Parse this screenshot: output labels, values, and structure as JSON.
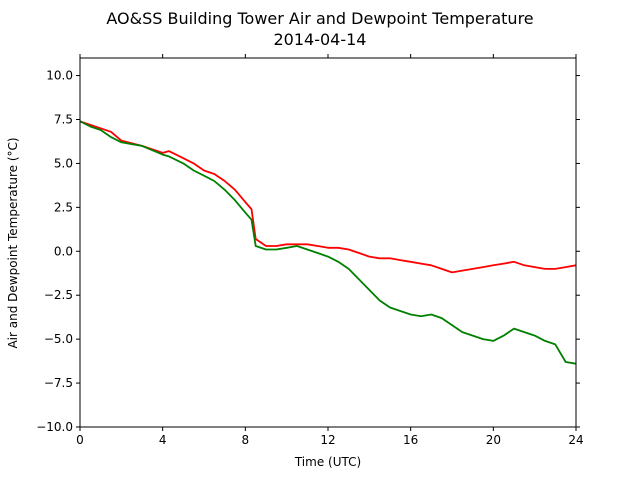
{
  "chart_data": {
    "type": "line",
    "title": "AO&SS Building Tower Air and Dewpoint Temperature",
    "subtitle": "2014-04-14",
    "xlabel": "Time (UTC)",
    "ylabel": "Air and Dewpoint Temperature (°C)",
    "xlim": [
      0,
      24
    ],
    "ylim": [
      -10,
      11
    ],
    "xticks": [
      0,
      4,
      8,
      12,
      16,
      20,
      24
    ],
    "yticks": [
      -10.0,
      -7.5,
      -5.0,
      -2.5,
      0.0,
      2.5,
      5.0,
      7.5,
      10.0
    ],
    "ytick_labels": [
      "−10.0",
      "−7.5",
      "−5.0",
      "−2.5",
      "0.0",
      "2.5",
      "5.0",
      "7.5",
      "10.0"
    ],
    "grid": false,
    "legend": "none",
    "series": [
      {
        "color": "#ff0000",
        "x": [
          0,
          0.5,
          1,
          1.5,
          2,
          3,
          4,
          4.3,
          5,
          5.5,
          6,
          6.5,
          7,
          7.5,
          8,
          8.3,
          8.5,
          9,
          9.5,
          10,
          10.5,
          11,
          11.5,
          12,
          12.5,
          13,
          13.5,
          14,
          14.5,
          15,
          15.5,
          16,
          16.5,
          17,
          17.5,
          18,
          18.5,
          19,
          19.5,
          20,
          20.5,
          21,
          21.5,
          22,
          22.5,
          23,
          23.5,
          24
        ],
        "y": [
          7.4,
          7.2,
          7.0,
          6.8,
          6.3,
          6.0,
          5.6,
          5.7,
          5.3,
          5.0,
          4.6,
          4.4,
          4.0,
          3.5,
          2.8,
          2.4,
          0.7,
          0.3,
          0.3,
          0.4,
          0.4,
          0.4,
          0.3,
          0.2,
          0.2,
          0.1,
          -0.1,
          -0.3,
          -0.4,
          -0.4,
          -0.5,
          -0.6,
          -0.7,
          -0.8,
          -1.0,
          -1.2,
          -1.1,
          -1.0,
          -0.9,
          -0.8,
          -0.7,
          -0.6,
          -0.8,
          -0.9,
          -1.0,
          -1.0,
          -0.9,
          -0.8
        ]
      },
      {
        "color": "#008000",
        "x": [
          0,
          0.5,
          1,
          1.5,
          2,
          3,
          4,
          4.3,
          5,
          5.5,
          6,
          6.5,
          7,
          7.5,
          8,
          8.3,
          8.5,
          9,
          9.5,
          10,
          10.5,
          11,
          11.5,
          12,
          12.5,
          13,
          13.5,
          14,
          14.5,
          15,
          15.5,
          16,
          16.5,
          17,
          17.5,
          18,
          18.5,
          19,
          19.5,
          20,
          20.5,
          21,
          21.5,
          22,
          22.5,
          23,
          23.5,
          24
        ],
        "y": [
          7.4,
          7.1,
          6.9,
          6.5,
          6.2,
          6.0,
          5.5,
          5.4,
          5.0,
          4.6,
          4.3,
          4.0,
          3.5,
          2.9,
          2.2,
          1.8,
          0.3,
          0.1,
          0.1,
          0.2,
          0.3,
          0.1,
          -0.1,
          -0.3,
          -0.6,
          -1.0,
          -1.6,
          -2.2,
          -2.8,
          -3.2,
          -3.4,
          -3.6,
          -3.7,
          -3.6,
          -3.8,
          -4.2,
          -4.6,
          -4.8,
          -5.0,
          -5.1,
          -4.8,
          -4.4,
          -4.6,
          -4.8,
          -5.1,
          -5.3,
          -6.3,
          -6.4
        ]
      }
    ]
  }
}
